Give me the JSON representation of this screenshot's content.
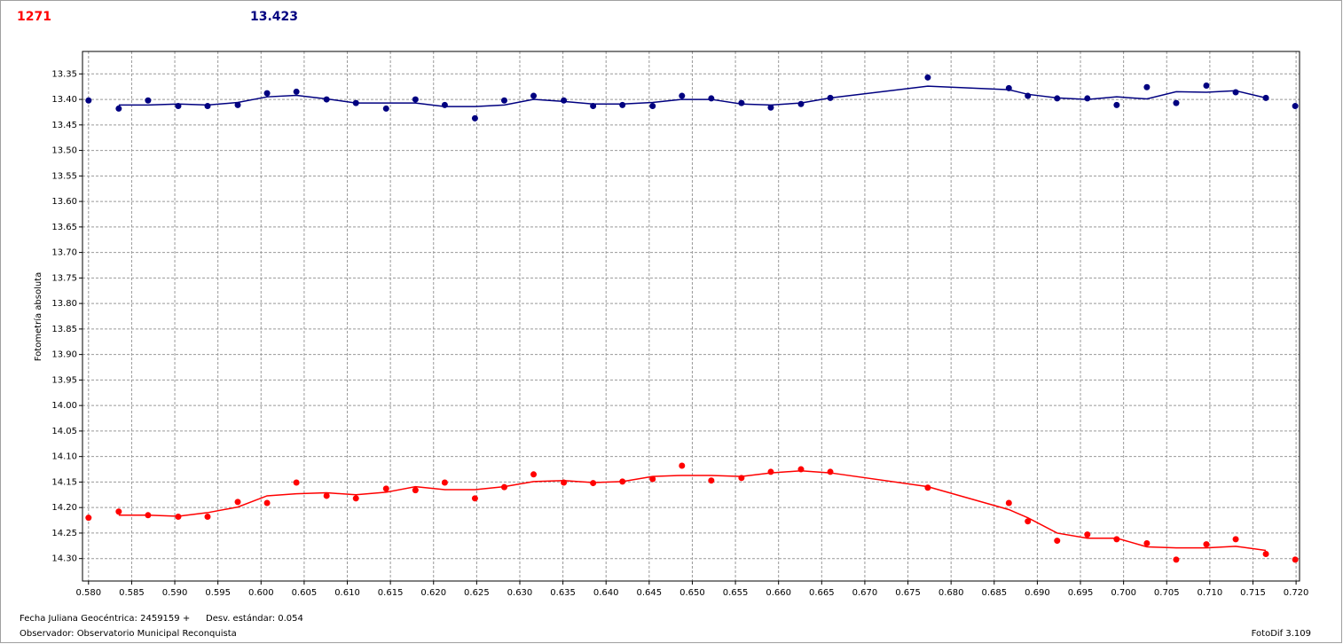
{
  "header": {
    "star": "1271",
    "reference": "13.423"
  },
  "footer": {
    "date_label": "Fecha Juliana Geocéntrica: 2459159 +",
    "stdev": "Desv. estándar: 0.054",
    "observer": "Observador: Observatorio Municipal Reconquista",
    "software": "FotoDif 3.109"
  },
  "chart_data": {
    "type": "scatter",
    "y_label": "Fotometría absoluta",
    "y_inverted": true,
    "grid": true,
    "xlim": [
      0.5793,
      0.7204
    ],
    "ylim": [
      13.306,
      14.344
    ],
    "xticks": [
      {
        "value": 0.58,
        "label": "0.580"
      },
      {
        "value": 0.585,
        "label": "0.585"
      },
      {
        "value": 0.59,
        "label": "0.590"
      },
      {
        "value": 0.595,
        "label": "0.595"
      },
      {
        "value": 0.6,
        "label": "0.600"
      },
      {
        "value": 0.605,
        "label": "0.605"
      },
      {
        "value": 0.61,
        "label": "0.610"
      },
      {
        "value": 0.615,
        "label": "0.615"
      },
      {
        "value": 0.62,
        "label": "0.620"
      },
      {
        "value": 0.625,
        "label": "0.625"
      },
      {
        "value": 0.63,
        "label": "0.630"
      },
      {
        "value": 0.635,
        "label": "0.635"
      },
      {
        "value": 0.64,
        "label": "0.640"
      },
      {
        "value": 0.645,
        "label": "0.645"
      },
      {
        "value": 0.65,
        "label": "0.650"
      },
      {
        "value": 0.655,
        "label": "0.655"
      },
      {
        "value": 0.66,
        "label": "0.660"
      },
      {
        "value": 0.665,
        "label": "0.665"
      },
      {
        "value": 0.67,
        "label": "0.670"
      },
      {
        "value": 0.675,
        "label": "0.675"
      },
      {
        "value": 0.68,
        "label": "0.680"
      },
      {
        "value": 0.685,
        "label": "0.685"
      },
      {
        "value": 0.69,
        "label": "0.690"
      },
      {
        "value": 0.695,
        "label": "0.695"
      },
      {
        "value": 0.7,
        "label": "0.700"
      },
      {
        "value": 0.705,
        "label": "0.705"
      },
      {
        "value": 0.71,
        "label": "0.710"
      },
      {
        "value": 0.715,
        "label": "0.715"
      },
      {
        "value": 0.72,
        "label": "0.720"
      }
    ],
    "yticks": [
      13.35,
      {
        "value": 13.4,
        "label": "13.40"
      },
      13.45,
      {
        "value": 13.5,
        "label": "13.50"
      },
      13.55,
      {
        "value": 13.6,
        "label": "13.60"
      },
      13.65,
      {
        "value": 13.7,
        "label": "13.70"
      },
      13.75,
      {
        "value": 13.8,
        "label": "13.80"
      },
      13.85,
      {
        "value": 13.9,
        "label": "13.90"
      },
      13.95,
      {
        "value": 14.0,
        "label": "14.00"
      },
      14.05,
      {
        "value": 14.1,
        "label": "14.10"
      },
      14.15,
      {
        "value": 14.2,
        "label": "14.20"
      },
      14.25,
      {
        "value": 14.3,
        "label": "14.30"
      }
    ],
    "series": [
      {
        "style": "markers",
        "color": "#000080",
        "x": [
          0.58,
          0.5835,
          0.5869,
          0.5904,
          0.5938,
          0.5973,
          0.6007,
          0.6041,
          0.6076,
          0.611,
          0.6145,
          0.6179,
          0.6213,
          0.6248,
          0.6282,
          0.6316,
          0.6351,
          0.6385,
          0.6419,
          0.6454,
          0.6488,
          0.6522,
          0.6557,
          0.6591,
          0.6626,
          0.666,
          0.6773,
          0.6867,
          0.6889,
          0.6923,
          0.6958,
          0.6992,
          0.7027,
          0.7061,
          0.7096,
          0.713,
          0.7165,
          0.7199
        ],
        "values": [
          13.402,
          13.418,
          13.402,
          13.413,
          13.413,
          13.411,
          13.388,
          13.385,
          13.4,
          13.407,
          13.418,
          13.4,
          13.411,
          13.437,
          13.402,
          13.393,
          13.402,
          13.413,
          13.411,
          13.413,
          13.393,
          13.398,
          13.407,
          13.416,
          13.409,
          13.397,
          13.357,
          13.378,
          13.393,
          13.398,
          13.398,
          13.411,
          13.376,
          13.407,
          13.373,
          13.386,
          13.397,
          13.413
        ]
      },
      {
        "style": "line",
        "color": "#000080",
        "x": [
          0.5835,
          0.5869,
          0.5904,
          0.5938,
          0.5973,
          0.6007,
          0.6041,
          0.6076,
          0.611,
          0.6145,
          0.6179,
          0.6213,
          0.6248,
          0.6282,
          0.6316,
          0.6351,
          0.6385,
          0.6419,
          0.6454,
          0.6488,
          0.6522,
          0.6557,
          0.6591,
          0.6626,
          0.666,
          0.6773,
          0.6867,
          0.6889,
          0.6923,
          0.6958,
          0.6992,
          0.7027,
          0.7061,
          0.7096,
          0.713,
          0.7165
        ],
        "values": [
          13.411,
          13.411,
          13.409,
          13.411,
          13.406,
          13.395,
          13.392,
          13.399,
          13.407,
          13.407,
          13.407,
          13.414,
          13.414,
          13.411,
          13.4,
          13.404,
          13.409,
          13.409,
          13.406,
          13.4,
          13.4,
          13.409,
          13.411,
          13.407,
          13.397,
          13.374,
          13.381,
          13.39,
          13.397,
          13.4,
          13.395,
          13.399,
          13.385,
          13.386,
          13.383,
          13.397
        ]
      },
      {
        "style": "markers",
        "color": "#ff0000",
        "x": [
          0.58,
          0.5835,
          0.5869,
          0.5904,
          0.5938,
          0.5973,
          0.6007,
          0.6041,
          0.6076,
          0.611,
          0.6145,
          0.6179,
          0.6213,
          0.6248,
          0.6282,
          0.6316,
          0.6351,
          0.6385,
          0.6419,
          0.6454,
          0.6488,
          0.6522,
          0.6557,
          0.6591,
          0.6626,
          0.666,
          0.6773,
          0.6867,
          0.6889,
          0.6923,
          0.6958,
          0.6992,
          0.7027,
          0.7061,
          0.7096,
          0.713,
          0.7165,
          0.7199
        ],
        "values": [
          14.22,
          14.208,
          14.215,
          14.218,
          14.218,
          14.189,
          14.191,
          14.151,
          14.177,
          14.182,
          14.163,
          14.166,
          14.151,
          14.182,
          14.16,
          14.135,
          14.151,
          14.152,
          14.149,
          14.144,
          14.118,
          14.147,
          14.142,
          14.13,
          14.125,
          14.13,
          14.161,
          14.191,
          14.227,
          14.265,
          14.253,
          14.262,
          14.27,
          14.302,
          14.272,
          14.262,
          14.291,
          14.302
        ]
      },
      {
        "style": "line",
        "color": "#ff0000",
        "x": [
          0.5835,
          0.5869,
          0.5904,
          0.5938,
          0.5973,
          0.6007,
          0.6041,
          0.6076,
          0.611,
          0.6145,
          0.6179,
          0.6213,
          0.6248,
          0.6282,
          0.6316,
          0.6351,
          0.6385,
          0.6419,
          0.6454,
          0.6488,
          0.6522,
          0.6557,
          0.6591,
          0.6626,
          0.666,
          0.6773,
          0.6867,
          0.6889,
          0.6923,
          0.6958,
          0.6992,
          0.7027,
          0.7061,
          0.7096,
          0.713,
          0.7165
        ],
        "values": [
          14.215,
          14.215,
          14.217,
          14.21,
          14.199,
          14.177,
          14.173,
          14.171,
          14.175,
          14.17,
          14.159,
          14.165,
          14.165,
          14.159,
          14.149,
          14.147,
          14.151,
          14.149,
          14.139,
          14.137,
          14.137,
          14.139,
          14.132,
          14.128,
          14.132,
          14.159,
          14.204,
          14.22,
          14.25,
          14.26,
          14.26,
          14.277,
          14.279,
          14.279,
          14.276,
          14.284
        ]
      }
    ]
  }
}
